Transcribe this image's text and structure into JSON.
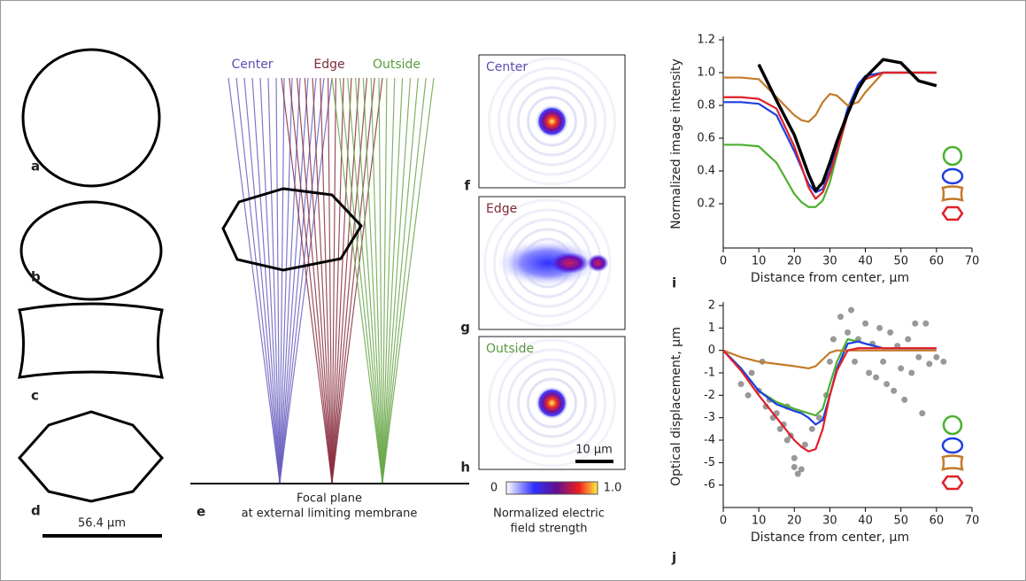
{
  "shapes": {
    "labels": [
      "a",
      "b",
      "c",
      "d"
    ],
    "scale_bar": "56.4 µm"
  },
  "rays": {
    "labels": [
      "Center",
      "Edge",
      "Outside"
    ],
    "panel": "e",
    "caption": [
      "Focal plane",
      "at external limiting membrane"
    ]
  },
  "field_maps": {
    "panels": [
      {
        "panel": "f",
        "label": "Center"
      },
      {
        "panel": "g",
        "label": "Edge"
      },
      {
        "panel": "h",
        "label": "Outside"
      }
    ],
    "scale_bar": "10 µm",
    "colorbar": {
      "min": "0",
      "max": "1.0",
      "title": [
        "Normalized electric",
        "field strength"
      ]
    }
  },
  "chart_data": [
    {
      "type": "line",
      "panel": "i",
      "xlabel": "Distance from center, µm",
      "ylabel": "Normalized image intensity",
      "x": [
        0,
        5,
        10,
        15,
        20,
        22,
        24,
        26,
        28,
        30,
        32,
        35,
        38,
        40,
        45,
        50,
        55,
        60
      ],
      "xlim": [
        0,
        70
      ],
      "xticks": [
        0,
        10,
        20,
        30,
        40,
        50,
        60,
        70
      ],
      "ylim": [
        -0.07,
        1.2
      ],
      "yticks": [
        0.2,
        0.4,
        0.6,
        0.8,
        {
          "value": 1.0,
          "label": "1.0"
        },
        1.2
      ],
      "series": [
        {
          "color": "#4cb030",
          "values": [
            0.56,
            0.56,
            0.55,
            0.45,
            0.26,
            0.21,
            0.18,
            0.18,
            0.22,
            0.33,
            0.5,
            0.75,
            0.92,
            0.98,
            1,
            1,
            1,
            1
          ]
        },
        {
          "color": "#1f3de0",
          "values": [
            0.82,
            0.82,
            0.81,
            0.74,
            0.52,
            0.42,
            0.32,
            0.27,
            0.29,
            0.4,
            0.55,
            0.78,
            0.93,
            0.98,
            1,
            1,
            1,
            1
          ]
        },
        {
          "color": "#c47a28",
          "values": [
            0.97,
            0.97,
            0.96,
            0.85,
            0.74,
            0.71,
            0.7,
            0.74,
            0.82,
            0.87,
            0.86,
            0.8,
            0.82,
            0.88,
            1,
            1,
            1,
            1
          ]
        },
        {
          "color": "#e0202a",
          "values": [
            0.85,
            0.85,
            0.84,
            0.78,
            0.55,
            0.43,
            0.3,
            0.23,
            0.27,
            0.38,
            0.52,
            0.74,
            0.9,
            0.96,
            1,
            1,
            1,
            1
          ]
        },
        {
          "color": "#000000",
          "values": [
            null,
            null,
            1.05,
            0.83,
            0.62,
            0.5,
            0.38,
            0.28,
            0.33,
            0.45,
            0.58,
            0.75,
            0.9,
            0.97,
            1.08,
            1.06,
            0.95,
            0.92
          ]
        }
      ]
    },
    {
      "type": "line",
      "panel": "j",
      "xlabel": "Distance from center, µm",
      "ylabel": "Optical displacement, µm",
      "x": [
        0,
        5,
        10,
        15,
        20,
        22,
        24,
        26,
        28,
        30,
        32,
        35,
        38,
        40,
        45,
        50,
        55,
        60
      ],
      "xlim": [
        0,
        70
      ],
      "xticks": [
        0,
        10,
        20,
        30,
        40,
        50,
        60,
        70
      ],
      "ylim": [
        -7,
        2
      ],
      "yticks": [
        -6,
        -5,
        -4,
        -3,
        -2,
        -1,
        0,
        1,
        2
      ],
      "points": {
        "color": "#555555",
        "x": [
          5,
          7,
          8,
          10,
          11,
          12,
          13,
          14,
          15,
          16,
          17,
          18,
          19,
          20,
          20,
          21,
          22,
          18,
          23,
          25,
          27,
          29,
          30,
          31,
          33,
          35,
          36,
          37,
          38,
          40,
          41,
          42,
          43,
          44,
          45,
          46,
          47,
          48,
          49,
          50,
          51,
          52,
          53,
          54,
          55,
          56,
          57,
          58,
          60,
          62
        ],
        "values": [
          -1.5,
          -2,
          -1,
          -1.8,
          -0.5,
          -2.5,
          -2.2,
          -3,
          -2.8,
          -3.5,
          -3.3,
          -4,
          -3.8,
          -4.8,
          -5.2,
          -5.5,
          -5.3,
          -2.5,
          -4.2,
          -3.5,
          -3,
          -2,
          -0.5,
          0.5,
          1.5,
          0.8,
          1.8,
          -0.5,
          0.5,
          1.2,
          -1,
          0.3,
          -1.2,
          1,
          -0.5,
          -1.5,
          0.8,
          -1.8,
          0.2,
          -0.8,
          -2.2,
          0.5,
          -1,
          1.2,
          -0.3,
          -2.8,
          1.2,
          -0.6,
          -0.3,
          -0.5
        ]
      },
      "series": [
        {
          "color": "#4cb030",
          "values": [
            0,
            -0.8,
            -1.8,
            -2.3,
            -2.6,
            -2.7,
            -2.8,
            -2.9,
            -2.6,
            -1.5,
            -0.5,
            0.5,
            0.4,
            0.3,
            0.1,
            0.1,
            0.1,
            0.1
          ]
        },
        {
          "color": "#1f3de0",
          "values": [
            0,
            -0.8,
            -1.8,
            -2.4,
            -2.7,
            -2.8,
            -3,
            -3.3,
            -3.1,
            -2,
            -0.8,
            0.3,
            0.4,
            0.3,
            0.1,
            0.1,
            0.1,
            0.1
          ]
        },
        {
          "color": "#c47a28",
          "values": [
            0,
            -0.3,
            -0.5,
            -0.6,
            -0.7,
            -0.75,
            -0.8,
            -0.7,
            -0.4,
            -0.1,
            0,
            0,
            0,
            0,
            0,
            0,
            0,
            0
          ]
        },
        {
          "color": "#e0202a",
          "values": [
            0,
            -0.9,
            -2,
            -3,
            -4,
            -4.3,
            -4.5,
            -4.4,
            -3.5,
            -2,
            -0.9,
            0,
            0.1,
            0.1,
            0.1,
            0.1,
            0.1,
            0.1
          ]
        }
      ]
    }
  ]
}
